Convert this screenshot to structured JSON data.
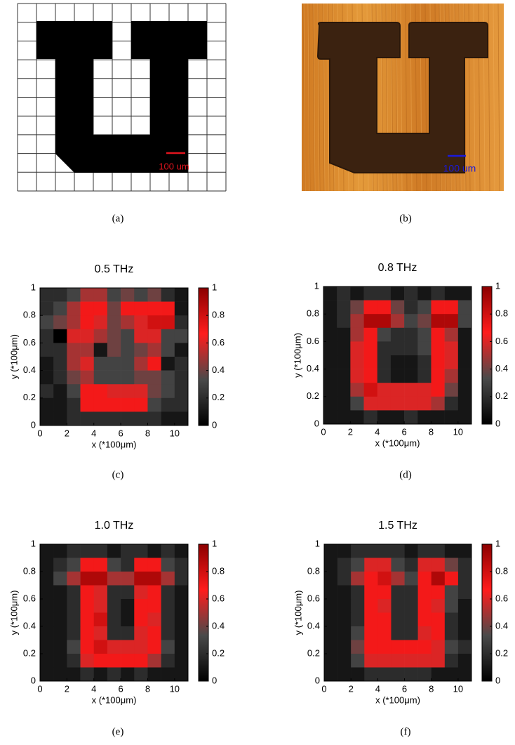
{
  "figure": {
    "panel_a": {
      "scale_label": "100 um",
      "caption": "(a)"
    },
    "panel_b": {
      "scale_label": "100 um",
      "caption": "(b)"
    }
  },
  "chart_data": [
    {
      "type": "heatmap",
      "title": "0.5 THz",
      "xlabel": "x (*100μm)",
      "ylabel": "y (*100μm)",
      "caption": "(c)",
      "xlim": [
        0,
        11
      ],
      "xticks": [
        0,
        2,
        4,
        6,
        8,
        10
      ],
      "ylim": [
        0,
        1
      ],
      "yticks": [
        0,
        0.2,
        0.4,
        0.6,
        0.8,
        1
      ],
      "zlim": [
        0,
        1
      ],
      "zticks": [
        0,
        0.2,
        0.4,
        0.6,
        0.8,
        1
      ],
      "colormap": [
        "#000000",
        "#4a4a4a",
        "#ff1c1c",
        "#8b0000"
      ],
      "z": [
        [
          0.2,
          0.2,
          0.3,
          0.5,
          0.5,
          0.3,
          0.4,
          0.3,
          0.4,
          0.2,
          0.1
        ],
        [
          0.2,
          0.3,
          0.5,
          0.7,
          0.7,
          0.4,
          0.7,
          0.7,
          0.7,
          0.7,
          0.1
        ],
        [
          0.3,
          0.4,
          0.5,
          0.7,
          0.6,
          0.4,
          0.5,
          0.6,
          0.8,
          0.8,
          0.2
        ],
        [
          0.2,
          0.0,
          0.6,
          0.6,
          0.5,
          0.4,
          0.3,
          0.6,
          0.6,
          0.3,
          0.3
        ],
        [
          0.2,
          0.2,
          0.5,
          0.5,
          0.1,
          0.4,
          0.3,
          0.4,
          0.5,
          0.3,
          0.1
        ],
        [
          0.1,
          0.2,
          0.5,
          0.6,
          0.3,
          0.3,
          0.3,
          0.5,
          0.7,
          0.1,
          0.2
        ],
        [
          0.1,
          0.2,
          0.4,
          0.5,
          0.3,
          0.3,
          0.3,
          0.4,
          0.4,
          0.3,
          0.2
        ],
        [
          0.2,
          0.1,
          0.3,
          0.7,
          0.7,
          0.6,
          0.6,
          0.6,
          0.4,
          0.3,
          0.2
        ],
        [
          0.1,
          0.1,
          0.2,
          0.7,
          0.7,
          0.7,
          0.7,
          0.7,
          0.3,
          0.2,
          0.2
        ],
        [
          0.1,
          0.1,
          0.2,
          0.2,
          0.2,
          0.2,
          0.2,
          0.2,
          0.2,
          0.1,
          0.1
        ]
      ]
    },
    {
      "type": "heatmap",
      "title": "0.8 THz",
      "xlabel": "x (*100μm)",
      "ylabel": "y (*100μm)",
      "caption": "(d)",
      "xlim": [
        0,
        11
      ],
      "xticks": [
        0,
        2,
        4,
        6,
        8,
        10
      ],
      "ylim": [
        0,
        1
      ],
      "yticks": [
        0,
        0.2,
        0.4,
        0.6,
        0.8,
        1
      ],
      "zlim": [
        0,
        1
      ],
      "zticks": [
        0,
        0.2,
        0.4,
        0.6,
        0.8,
        1
      ],
      "colormap": [
        "#000000",
        "#4a4a4a",
        "#ff1c1c",
        "#8b0000"
      ],
      "z": [
        [
          0.1,
          0.2,
          0.1,
          0.2,
          0.2,
          0.1,
          0.2,
          0.1,
          0.2,
          0.1,
          0.1
        ],
        [
          0.1,
          0.2,
          0.4,
          0.7,
          0.7,
          0.4,
          0.2,
          0.3,
          0.7,
          0.7,
          0.3
        ],
        [
          0.1,
          0.2,
          0.5,
          0.9,
          0.9,
          0.5,
          0.3,
          0.4,
          0.9,
          0.9,
          0.3
        ],
        [
          0.1,
          0.1,
          0.5,
          0.7,
          0.3,
          0.2,
          0.2,
          0.3,
          0.7,
          0.5,
          0.1
        ],
        [
          0.1,
          0.1,
          0.6,
          0.7,
          0.2,
          0.2,
          0.2,
          0.3,
          0.7,
          0.6,
          0.1
        ],
        [
          0.1,
          0.1,
          0.6,
          0.7,
          0.2,
          0.1,
          0.1,
          0.2,
          0.7,
          0.6,
          0.1
        ],
        [
          0.1,
          0.1,
          0.6,
          0.7,
          0.2,
          0.1,
          0.1,
          0.2,
          0.7,
          0.5,
          0.1
        ],
        [
          0.1,
          0.1,
          0.5,
          0.8,
          0.6,
          0.6,
          0.6,
          0.6,
          0.7,
          0.4,
          0.1
        ],
        [
          0.1,
          0.1,
          0.3,
          0.6,
          0.6,
          0.6,
          0.6,
          0.6,
          0.5,
          0.2,
          0.1
        ],
        [
          0.1,
          0.1,
          0.1,
          0.2,
          0.1,
          0.1,
          0.2,
          0.1,
          0.1,
          0.1,
          0.1
        ]
      ]
    },
    {
      "type": "heatmap",
      "title": "1.0 THz",
      "xlabel": "x (*100μm)",
      "ylabel": "y (*100μm)",
      "caption": "(e)",
      "xlim": [
        0,
        11
      ],
      "xticks": [
        0,
        2,
        4,
        6,
        8,
        10
      ],
      "ylim": [
        0,
        1
      ],
      "yticks": [
        0,
        0.2,
        0.4,
        0.6,
        0.8,
        1
      ],
      "zlim": [
        0,
        1
      ],
      "zticks": [
        0,
        0.2,
        0.4,
        0.6,
        0.8,
        1
      ],
      "colormap": [
        "#000000",
        "#4a4a4a",
        "#ff1c1c",
        "#8b0000"
      ],
      "z": [
        [
          0.1,
          0.1,
          0.2,
          0.2,
          0.2,
          0.1,
          0.2,
          0.2,
          0.1,
          0.2,
          0.1
        ],
        [
          0.1,
          0.2,
          0.3,
          0.7,
          0.7,
          0.3,
          0.2,
          0.7,
          0.7,
          0.3,
          0.2
        ],
        [
          0.1,
          0.3,
          0.5,
          0.9,
          0.9,
          0.5,
          0.5,
          0.9,
          0.9,
          0.5,
          0.2
        ],
        [
          0.1,
          0.1,
          0.2,
          0.7,
          0.6,
          0.2,
          0.2,
          0.6,
          0.7,
          0.2,
          0.1
        ],
        [
          0.1,
          0.1,
          0.2,
          0.7,
          0.6,
          0.2,
          0.1,
          0.7,
          0.7,
          0.2,
          0.1
        ],
        [
          0.1,
          0.1,
          0.2,
          0.7,
          0.8,
          0.2,
          0.1,
          0.7,
          0.6,
          0.2,
          0.1
        ],
        [
          0.1,
          0.1,
          0.2,
          0.7,
          0.6,
          0.2,
          0.2,
          0.6,
          0.7,
          0.2,
          0.1
        ],
        [
          0.1,
          0.1,
          0.3,
          0.7,
          0.8,
          0.6,
          0.6,
          0.6,
          0.7,
          0.3,
          0.1
        ],
        [
          0.1,
          0.1,
          0.2,
          0.6,
          0.7,
          0.7,
          0.7,
          0.7,
          0.5,
          0.2,
          0.1
        ],
        [
          0.1,
          0.1,
          0.1,
          0.2,
          0.1,
          0.2,
          0.1,
          0.2,
          0.1,
          0.1,
          0.1
        ]
      ]
    },
    {
      "type": "heatmap",
      "title": "1.5 THz",
      "xlabel": "x (*100μm)",
      "ylabel": "y (*100μm)",
      "caption": "(f)",
      "xlim": [
        0,
        11
      ],
      "xticks": [
        0,
        2,
        4,
        6,
        8,
        10
      ],
      "ylim": [
        0,
        1
      ],
      "yticks": [
        0,
        0.2,
        0.4,
        0.6,
        0.8,
        1
      ],
      "zlim": [
        0,
        1
      ],
      "zticks": [
        0,
        0.2,
        0.4,
        0.6,
        0.8,
        1
      ],
      "colormap": [
        "#000000",
        "#4a4a4a",
        "#ff1c1c",
        "#8b0000"
      ],
      "z": [
        [
          0.1,
          0.1,
          0.2,
          0.2,
          0.2,
          0.2,
          0.1,
          0.2,
          0.2,
          0.1,
          0.1
        ],
        [
          0.1,
          0.2,
          0.3,
          0.6,
          0.6,
          0.3,
          0.2,
          0.6,
          0.6,
          0.4,
          0.2
        ],
        [
          0.1,
          0.2,
          0.5,
          0.7,
          0.8,
          0.5,
          0.3,
          0.7,
          0.9,
          0.7,
          0.2
        ],
        [
          0.1,
          0.1,
          0.2,
          0.7,
          0.7,
          0.2,
          0.2,
          0.7,
          0.7,
          0.3,
          0.2
        ],
        [
          0.1,
          0.1,
          0.2,
          0.7,
          0.6,
          0.2,
          0.2,
          0.7,
          0.6,
          0.3,
          0.1
        ],
        [
          0.1,
          0.1,
          0.2,
          0.7,
          0.7,
          0.2,
          0.2,
          0.7,
          0.7,
          0.2,
          0.1
        ],
        [
          0.1,
          0.1,
          0.3,
          0.7,
          0.7,
          0.2,
          0.2,
          0.6,
          0.7,
          0.2,
          0.1
        ],
        [
          0.1,
          0.1,
          0.4,
          0.7,
          0.7,
          0.7,
          0.7,
          0.7,
          0.6,
          0.3,
          0.2
        ],
        [
          0.1,
          0.1,
          0.3,
          0.6,
          0.6,
          0.6,
          0.6,
          0.6,
          0.6,
          0.2,
          0.1
        ],
        [
          0.1,
          0.1,
          0.1,
          0.2,
          0.2,
          0.2,
          0.2,
          0.2,
          0.1,
          0.1,
          0.1
        ]
      ]
    }
  ]
}
